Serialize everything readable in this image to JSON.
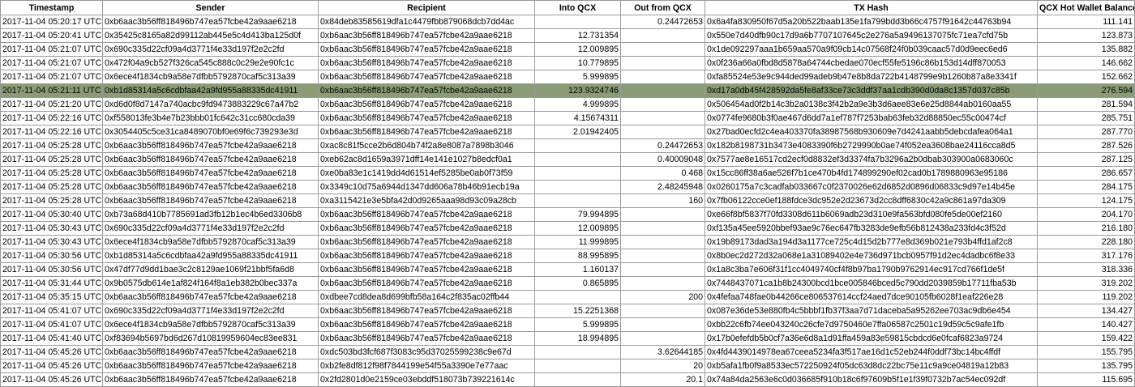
{
  "columns": [
    "Timestamp",
    "Sender",
    "Recipient",
    "Into QCX",
    "Out from QCX",
    "TX Hash",
    "QCX Hot Wallet Balance"
  ],
  "rows": [
    [
      "2017-11-04 05:20:17 UTC",
      "0xb6aac3b56ff818496b747ea57fcbe42a9aae6218",
      "0x84deb83585619dfa1c4479fbb879068dcb7dd4ac",
      "",
      "0.24472653",
      "0x6a4fa830950f67d5a20b522baab135e1fa799bdd3b66c4757f91642c44763b94",
      "111.141"
    ],
    [
      "2017-11-04 05:20:41 UTC",
      "0x35425c8165a82d99112ab445e5c4d413ba125d0f",
      "0xb6aac3b56ff818496b747ea57fcbe42a9aae6218",
      "12.731354",
      "",
      "0x550e7d40dfb90c17d9a6b7707107645c2e276a5a9496137075fc71ea7cfd75b",
      "123.873"
    ],
    [
      "2017-11-04 05:21:07 UTC",
      "0x690c335d22cf09a4d3771f4e33d197f2e2c2fd",
      "0xb6aac3b56ff818496b747ea57fcbe42a9aae6218",
      "12.009895",
      "",
      "0x1de092297aaa1b659aa570a9f09cb14c07568f24f0b039caac57d0d9eec6ed6",
      "135.882"
    ],
    [
      "2017-11-04 05:21:07 UTC",
      "0x472f04a9cb527f326ca545c888c0c29e2e90fc1c",
      "0xb6aac3b56ff818496b747ea57fcbe42a9aae6218",
      "10.779895",
      "",
      "0x0f236a66a0fbd8d5878a64744cbedae070ecf55fe5196c86b153d14dff870053",
      "146.662"
    ],
    [
      "2017-11-04 05:21:07 UTC",
      "0x6ece4f1834cb9a58e7dfbb5792870caf5c313a39",
      "0xb6aac3b56ff818496b747ea57fcbe42a9aae6218",
      "5.999895",
      "",
      "0xfa85524e53e9c944ded99adeb9b47e8b8da722b4148799e9b1260b87a8e3341f",
      "152.662"
    ],
    [
      "2017-11-04 05:21:11 UTC",
      "0xb1d85314a5c6cdbfaa42a9fd955a88335dc41911",
      "0xb6aac3b56ff818496b747ea57fcbe42a9aae6218",
      "123.9324746",
      "",
      "0xd17a0db45f428592da5fe8af33ce73c3ddf37aa1cdb390d0da8c1357d037c85b",
      "276.594"
    ],
    [
      "2017-11-04 05:21:20 UTC",
      "0xd6d0f8d7147a740acbc9fd9473883229c67a47b2",
      "0xb6aac3b56ff818496b747ea57fcbe42a9aae6218",
      "4.999895",
      "",
      "0x506454ad0f2b14c3b2a0138c3f42b2a9e3b3d6aee83e6e25d8844ab0160aa55",
      "281.594"
    ],
    [
      "2017-11-04 05:22:16 UTC",
      "0xf558013fe3b4e7b23bbb01fc642c31cc680cda39",
      "0xb6aac3b56ff818496b747ea57fcbe42a9aae6218",
      "4.15674311",
      "",
      "0x0774fe9680b3f0ae467d6dd7a1ef787f7253bab63feb32d88850ec55c00474cf",
      "285.751"
    ],
    [
      "2017-11-04 05:22:16 UTC",
      "0x3054405c5ce31ca8489070bf0e69f6c739293e3d",
      "0xb6aac3b56ff818496b747ea57fcbe42a9aae6218",
      "2.01942405",
      "",
      "0x27bad0ecfd2c4ea403370fa38987568b930609e7d4241aabb5debcdafea064a1",
      "287.770"
    ],
    [
      "2017-11-04 05:25:28 UTC",
      "0xb6aac3b56ff818496b747ea57fcbe42a9aae6218",
      "0xac8c81f5cce2b6d804b74f2a8e8087a7898b3046",
      "",
      "0.24472653",
      "0x182b8198731b3473e4083390f6b2729990b0ae74f052ea3608bae24116cca8d5",
      "287.526"
    ],
    [
      "2017-11-04 05:25:28 UTC",
      "0xb6aac3b56ff818496b747ea57fcbe42a9aae6218",
      "0xeb62ac8d1659a3971dff14e141e1027b8edcf0a1",
      "",
      "0.40009048",
      "0x7577ae8e16517cd2ecf0d8832ef3d3374fa7b3296a2b0dbab303900a0683060c",
      "287.125"
    ],
    [
      "2017-11-04 05:25:28 UTC",
      "0xb6aac3b56ff818496b747ea57fcbe42a9aae6218",
      "0xe0ba83e1c1419dd4d61514ef5285be0ab0f73f59",
      "",
      "0.468",
      "0x15cc86ff38a6ae526f7b1ce470b4fd174899290ef02cad0b1789880963e95186",
      "286.657"
    ],
    [
      "2017-11-04 05:25:28 UTC",
      "0xb6aac3b56ff818496b747ea57fcbe42a9aae6218",
      "0x3349c10d75a6944d1347dd606a78b46b91ecb19a",
      "",
      "2.48245948",
      "0x0260175a7c3cadfab033667c0f2370026e62d6852d0896d06833c9d97e14b45e",
      "284.175"
    ],
    [
      "2017-11-04 05:25:28 UTC",
      "0xb6aac3b56ff818496b747ea57fcbe42a9aae6218",
      "0xa3115421e3e5bfa42d0d9265aaa98d93c09a28cb",
      "",
      "160",
      "0x7fb06122cce0ef188fdce3dc952e2d23673d2cc8dff6830c42a9c861a97da309",
      "124.175"
    ],
    [
      "2017-11-04 05:30:40 UTC",
      "0xb73a68d410b7785691ad3fb12b1ec4b6ed3306b8",
      "0xb6aac3b56ff818496b747ea57fcbe42a9aae6218",
      "79.994895",
      "",
      "0xe66f8bf5837f70fd3308d611b6069adb23d310e9fa563bfd080fe5de00ef2160",
      "204.170"
    ],
    [
      "2017-11-04 05:30:43 UTC",
      "0x690c335d22cf09a4d3771f4e33d197f2e2c2fd",
      "0xb6aac3b56ff818496b747ea57fcbe42a9aae6218",
      "12.009895",
      "",
      "0xf135a45ee5920bbef93ae9c76ec647fb3283de9efb56b812438a233fd4c3f52d",
      "216.180"
    ],
    [
      "2017-11-04 05:30:43 UTC",
      "0x6ece4f1834cb9a58e7dfbb5792870caf5c313a39",
      "0xb6aac3b56ff818496b747ea57fcbe42a9aae6218",
      "11.999895",
      "",
      "0x19b89173dad3a194d3a1177ce725c4d15d2b777e8d369b021e793b4ffd1af2c8",
      "228.180"
    ],
    [
      "2017-11-04 05:30:56 UTC",
      "0xb1d85314a5c6cdbfaa42a9fd955a88335dc41911",
      "0xb6aac3b56ff818496b747ea57fcbe42a9aae6218",
      "88.995895",
      "",
      "0x8b0ec2d272d32a068e1a31089402e4e736d971bcb0957f91d2ec4dadbc6f8e33",
      "317.176"
    ],
    [
      "2017-11-04 05:30:56 UTC",
      "0x47df77d9dd1bae3c2c8129ae1069f21bbf5fa6d8",
      "0xb6aac3b56ff818496b747ea57fcbe42a9aae6218",
      "1.160137",
      "",
      "0x1a8c3ba7e606f31f1cc4049740cf4f8b97ba1790b9762914ec917cd766f1de5f",
      "318.336"
    ],
    [
      "2017-11-04 05:31:44 UTC",
      "0x9b0575db614e1af824f164f8a1eb382b0bec337a",
      "0xb6aac3b56ff818496b747ea57fcbe42a9aae6218",
      "0.865895",
      "",
      "0x7448437071ca1b8b24300bcd1bce005846bced5c790dd2039859b17711fba53b",
      "319.202"
    ],
    [
      "2017-11-04 05:35:15 UTC",
      "0xb6aac3b56ff818496b747ea57fcbe42a9aae6218",
      "0xdbee7cd8dea8d699bfb58a164c2f835ac02ffb44",
      "",
      "200",
      "0x4fefaa748fae0b44266ce806537614ccf24aed7dce90105fb6028f1eaf226e28",
      "119.202"
    ],
    [
      "2017-11-04 05:41:07 UTC",
      "0x690c335d22cf09a4d3771f4e33d197f2e2c2fd",
      "0xb6aac3b56ff818496b747ea57fcbe42a9aae6218",
      "15.2251368",
      "",
      "0x087e36de53e880fb4c5bbbf1fb37f3aa7d71daceba5a95262ee703ac9db6e454",
      "134.427"
    ],
    [
      "2017-11-04 05:41:07 UTC",
      "0x6ece4f1834cb9a58e7dfbb5792870caf5c313a39",
      "0xb6aac3b56ff818496b747ea57fcbe42a9aae6218",
      "5.999895",
      "",
      "0xbb22c6fb74ee043240c26cfe7d9750460e7ffa06587c2501c19d59c5c9afe1fb",
      "140.427"
    ],
    [
      "2017-11-04 05:41:40 UTC",
      "0xf83694b5697bd6d267d10819959604ec83ee831",
      "0xb6aac3b56ff818496b747ea57fcbe42a9aae6218",
      "18.994895",
      "",
      "0x17b0efefdb5b0cf7a36e6d8a1d91ffa459a83e59815cbdcd6e0fcaf6823a9724",
      "159.422"
    ],
    [
      "2017-11-04 05:45:26 UTC",
      "0xb6aac3b56ff818496b747ea57fcbe42a9aae6218",
      "0xdc503bd3fcf687f3083c95d37025599238c9e67d",
      "",
      "3.62644185",
      "0x4fd4439014978ea67ceea5234fa3f517ae16d1c52eb244f0ddf73bc14bc4ffdf",
      "155.795"
    ],
    [
      "2017-11-04 05:45:26 UTC",
      "0xb6aac3b56ff818496b747ea57fcbe42a9aae6218",
      "0xb2fe8df812f98f7844199e54f55a3390e7e77aac",
      "",
      "20",
      "0xb5afa1fb0f9a8533ec572250924f05dc63d8dc22bc75e11c9a9ce04819a12b83",
      "135.795"
    ],
    [
      "2017-11-04 05:45:26 UTC",
      "0xb6aac3b56ff818496b747ea57fcbe42a9aae6218",
      "0x2fd2801d0e2159ce03ebddf518073b739221614c",
      "",
      "20.1",
      "0x74a84da2563e6c0d036685f910b18c6f97609b5f1e1f39f0732b7ac54ec092df",
      "115.695"
    ]
  ],
  "selected_row": 5,
  "colors": {
    "selected_row_bg": "#8a9c75",
    "grid": "#9a9a9a"
  }
}
